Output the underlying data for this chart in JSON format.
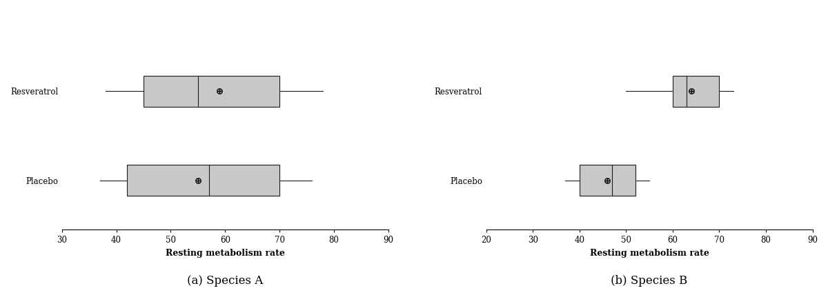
{
  "species_a": {
    "title": "(a) Species A",
    "xlabel": "Resting metabolism rate",
    "xlim": [
      30,
      90
    ],
    "xticks": [
      30,
      40,
      50,
      60,
      70,
      80,
      90
    ],
    "boxes": [
      {
        "label": "Resveratrol",
        "whislo": 38,
        "q1": 45,
        "med": 55,
        "q3": 70,
        "whishi": 78,
        "mean": 59
      },
      {
        "label": "Placebo",
        "whislo": 37,
        "q1": 42,
        "med": 57,
        "q3": 70,
        "whishi": 76,
        "mean": 55
      }
    ]
  },
  "species_b": {
    "title": "(b) Species B",
    "xlabel": "Resting metabolism rate",
    "xlim": [
      20,
      90
    ],
    "xticks": [
      20,
      30,
      40,
      50,
      60,
      70,
      80,
      90
    ],
    "boxes": [
      {
        "label": "Resveratrol",
        "whislo": 50,
        "q1": 60,
        "med": 63,
        "q3": 70,
        "whishi": 73,
        "mean": 64
      },
      {
        "label": "Placebo",
        "whislo": 37,
        "q1": 40,
        "med": 47,
        "q3": 52,
        "whishi": 55,
        "mean": 46
      }
    ]
  },
  "box_color": "#c8c8c8",
  "box_edgecolor": "#1a1a1a",
  "median_color": "#1a1a1a",
  "whisker_color": "#1a1a1a",
  "box_width": 0.35,
  "linewidth": 0.8,
  "xlabel_fontsize": 9,
  "tick_fontsize": 8.5,
  "ylabel_fontsize": 8.5,
  "title_fontsize": 12,
  "mean_markersize": 6
}
